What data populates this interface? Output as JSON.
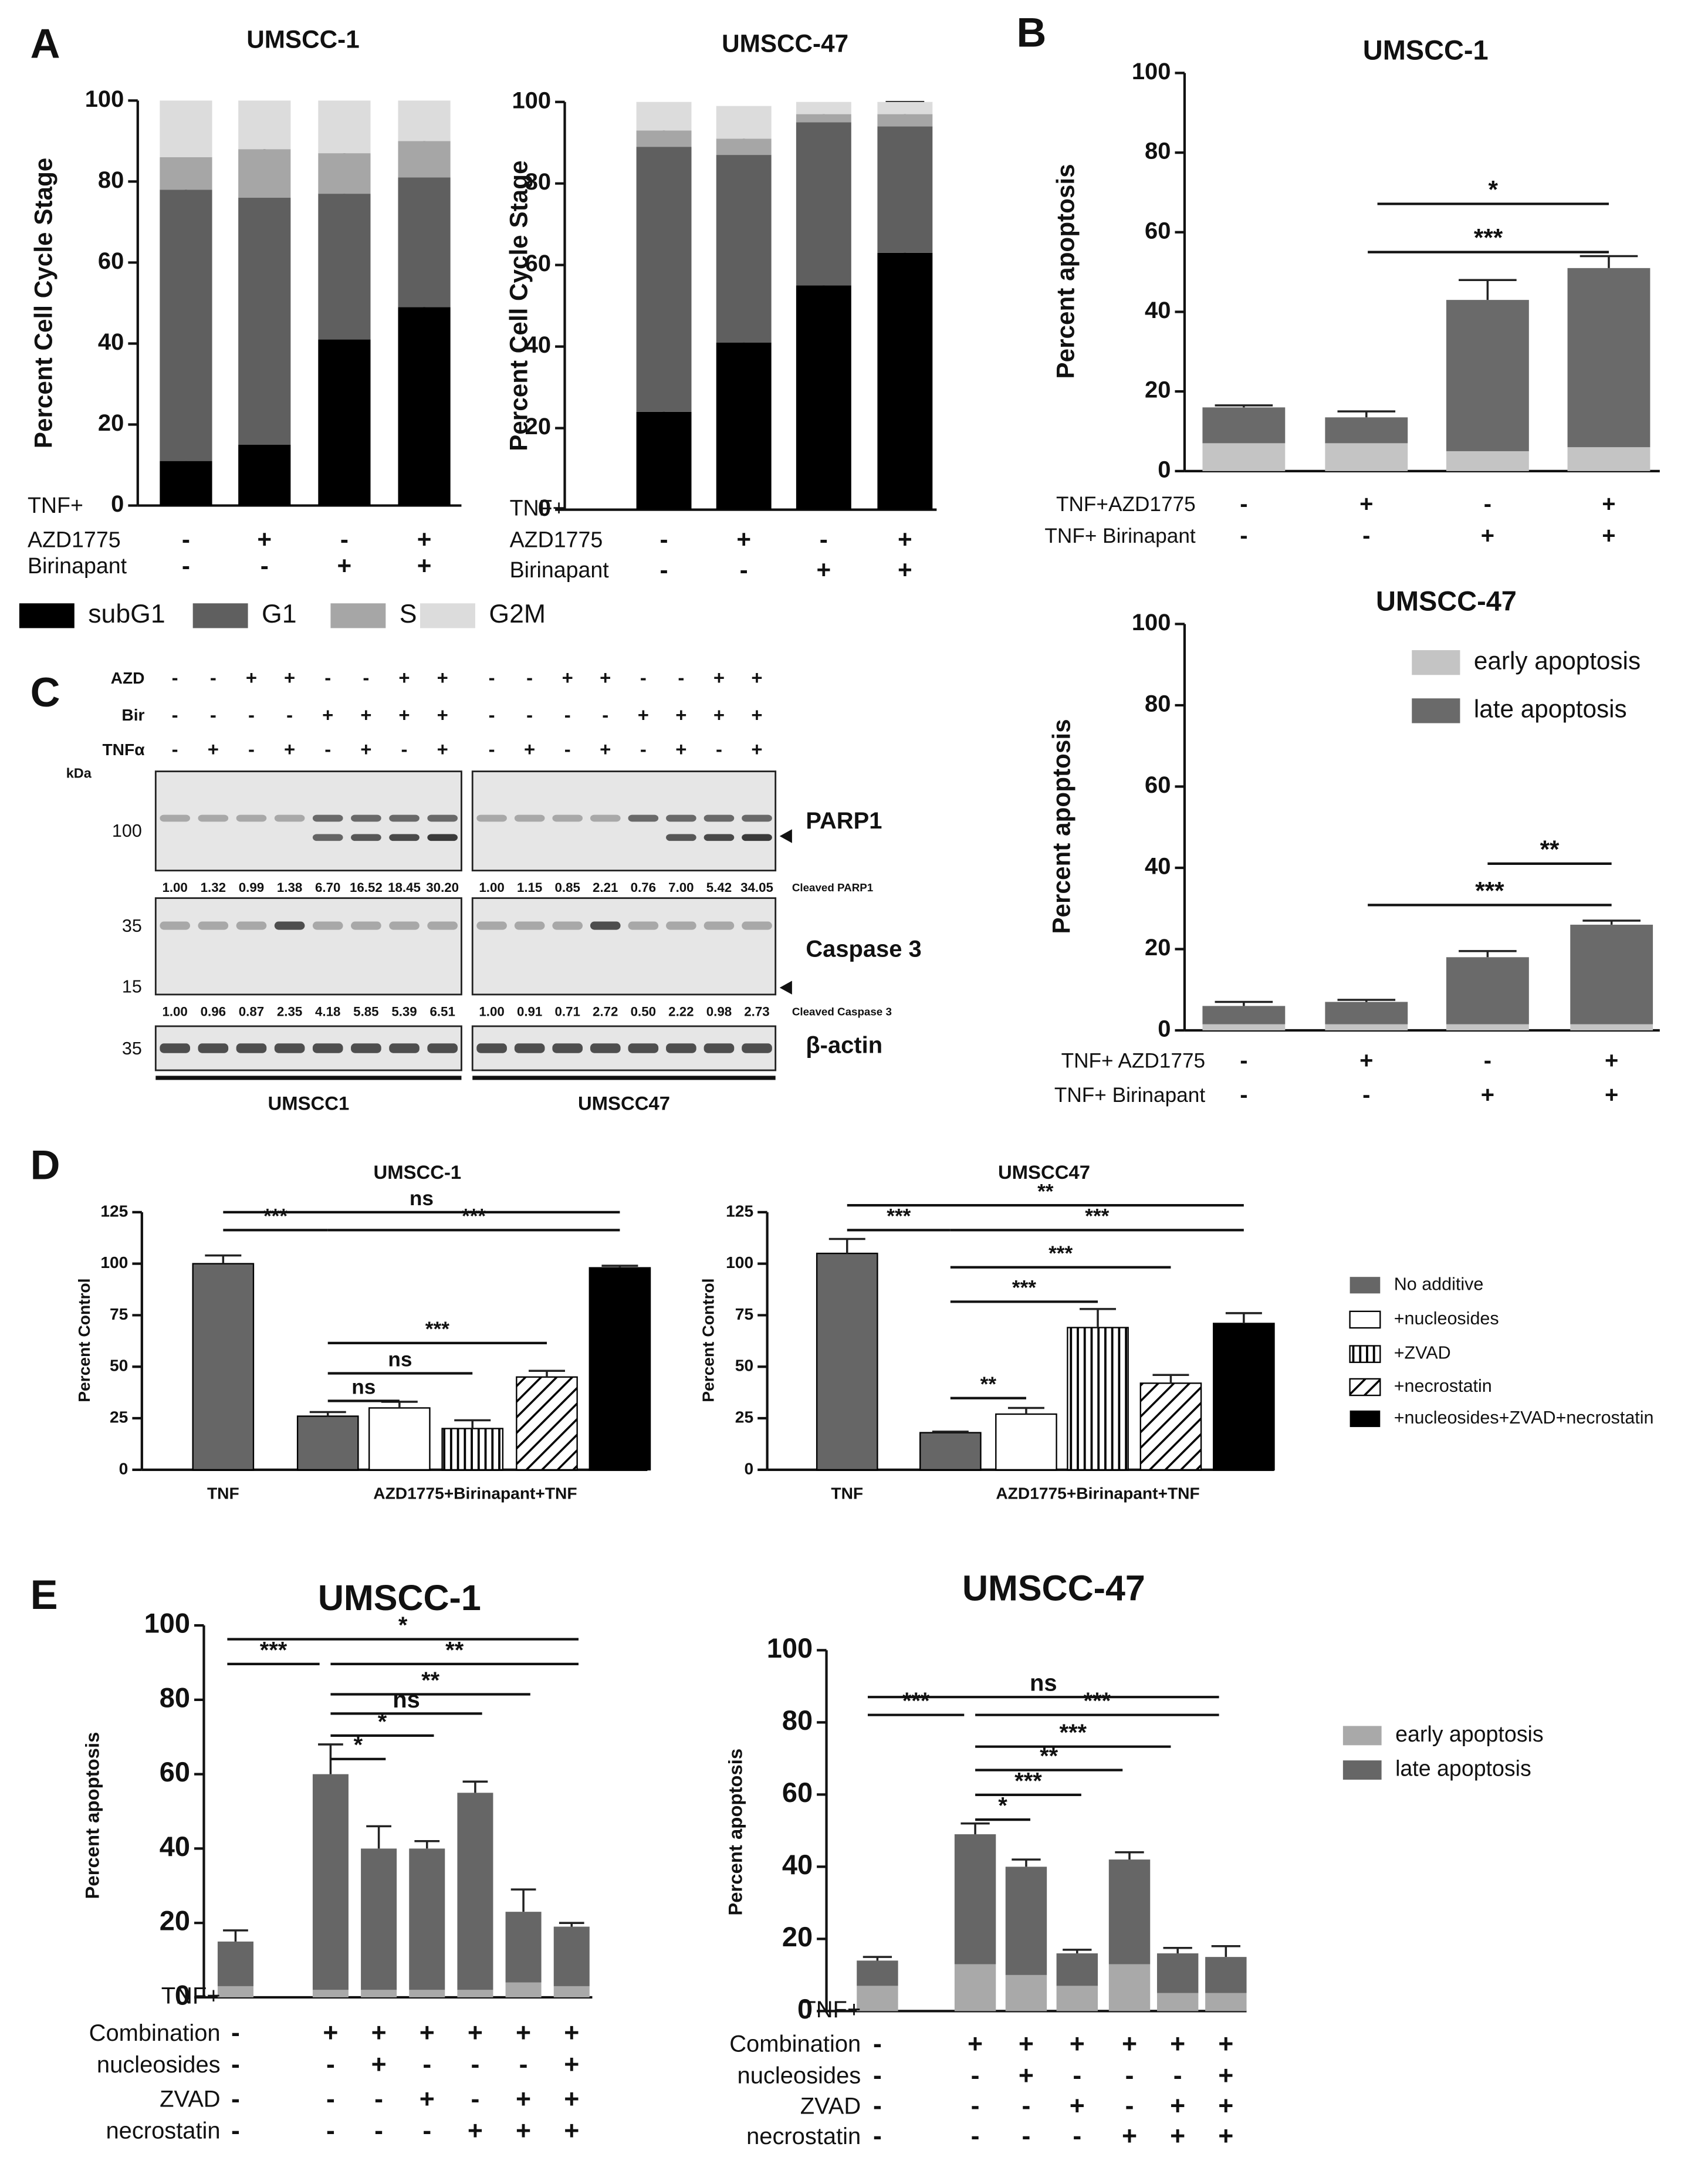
{
  "panels": [
    "A",
    "B",
    "C",
    "D",
    "E"
  ],
  "chart_data": [
    {
      "type": "stacked_bar",
      "title": "UMSCC-1",
      "ylabel": "Percent Cell Cycle Stage",
      "ylim": [
        0,
        100
      ],
      "yticks": [
        0,
        20,
        40,
        60,
        80,
        100
      ],
      "categories": [
        null,
        null,
        null,
        null
      ],
      "series": [
        {
          "name": "subG1",
          "color": "#000000",
          "values": [
            11,
            15,
            41,
            49
          ],
          "errors": [
            1,
            2,
            1.5,
            3
          ]
        },
        {
          "name": "G1",
          "color": "#5f5f5f",
          "values": [
            67,
            61,
            36,
            32
          ],
          "errors": [
            1.5,
            3,
            1,
            2
          ]
        },
        {
          "name": "S",
          "color": "#a6a6a6",
          "values": [
            8,
            12,
            10,
            9
          ],
          "errors": [
            1,
            1,
            0.5,
            1
          ]
        },
        {
          "name": "G2M",
          "color": "#dcdcdc",
          "values": [
            14,
            12,
            13,
            10
          ]
        }
      ],
      "condition_rows": [
        {
          "name": "TNF+",
          "signs": []
        },
        {
          "name": "AZD1775",
          "signs": [
            "-",
            "+",
            "-",
            "+"
          ]
        },
        {
          "name": "Birinapant",
          "signs": [
            "-",
            "-",
            "+",
            "+"
          ]
        }
      ],
      "legend": "bottom"
    },
    {
      "type": "stacked_bar",
      "title": "UMSCC-47",
      "ylabel": "Percent Cell Cycle Stage",
      "ylim": [
        0,
        100
      ],
      "yticks": [
        0,
        20,
        40,
        60,
        80,
        100
      ],
      "categories": [
        null,
        null,
        null,
        null
      ],
      "series": [
        {
          "name": "subG1",
          "color": "#000000",
          "values": [
            24,
            41,
            55,
            63
          ],
          "errors": [
            2,
            9,
            4,
            10
          ]
        },
        {
          "name": "G1",
          "color": "#5f5f5f",
          "values": [
            65,
            46,
            40,
            31
          ]
        },
        {
          "name": "S",
          "color": "#a6a6a6",
          "values": [
            4,
            4,
            2,
            3
          ],
          "errors": [
            1,
            3,
            1,
            3
          ]
        },
        {
          "name": "G2M",
          "color": "#dcdcdc",
          "values": [
            7,
            8,
            3,
            3
          ]
        }
      ],
      "condition_rows": [
        {
          "name": "TNF+",
          "signs": []
        },
        {
          "name": "AZD1775",
          "signs": [
            "-",
            "+",
            "-",
            "+"
          ]
        },
        {
          "name": "Birinapant",
          "signs": [
            "-",
            "-",
            "+",
            "+"
          ]
        }
      ]
    },
    {
      "type": "stacked_bar",
      "title": "UMSCC-1",
      "ylabel": "Percent apoptosis",
      "ylim": [
        0,
        100
      ],
      "yticks": [
        0,
        20,
        40,
        60,
        80,
        100
      ],
      "categories": [
        null,
        null,
        null,
        null
      ],
      "series": [
        {
          "name": "early apoptosis",
          "color": "#c4c4c4",
          "values": [
            7,
            7,
            5,
            6
          ]
        },
        {
          "name": "late apoptosis",
          "color": "#6a6a6a",
          "values": [
            9,
            6.5,
            38,
            45
          ],
          "errors": [
            0.5,
            1.5,
            5,
            3
          ]
        }
      ],
      "condition_rows": [
        {
          "name": "TNF+AZD1775",
          "signs": [
            "-",
            "+",
            "-",
            "+"
          ]
        },
        {
          "name": "TNF+ Birinapant",
          "signs": [
            "-",
            "-",
            "+",
            "+"
          ]
        }
      ],
      "annotations": [
        {
          "text": "*"
        },
        {
          "text": "***"
        }
      ]
    },
    {
      "type": "stacked_bar",
      "title": "UMSCC-47",
      "ylabel": "Percent apoptosis",
      "ylim": [
        0,
        100
      ],
      "yticks": [
        0,
        20,
        40,
        60,
        80,
        100
      ],
      "categories": [
        null,
        null,
        null,
        null
      ],
      "series": [
        {
          "name": "early apoptosis",
          "color": "#c4c4c4",
          "values": [
            1.5,
            1.5,
            1.5,
            1.5
          ]
        },
        {
          "name": "late apoptosis",
          "color": "#6a6a6a",
          "values": [
            4.5,
            5.5,
            16.5,
            24.5
          ],
          "errors": [
            1,
            0.5,
            1.5,
            1
          ]
        }
      ],
      "condition_rows": [
        {
          "name": "TNF+ AZD1775",
          "signs": [
            "-",
            "+",
            "-",
            "+"
          ]
        },
        {
          "name": "TNF+ Birinapant",
          "signs": [
            "-",
            "-",
            "+",
            "+"
          ]
        }
      ],
      "annotations": [
        {
          "text": "**"
        },
        {
          "text": "***"
        }
      ],
      "legend": "upper right"
    },
    {
      "type": "bar",
      "title": "UMSCC-1",
      "ylabel": "Percent Control",
      "ylim": [
        0,
        125
      ],
      "yticks": [
        0,
        25,
        50,
        75,
        100,
        125
      ],
      "categories": [
        "TNF",
        "AZD1775+Birinapant+TNF"
      ],
      "series": [
        {
          "name": "No additive",
          "color": "#666666",
          "values": [
            100,
            26
          ],
          "errors": [
            4,
            2
          ]
        },
        {
          "name": "+nucleosides",
          "color": "#ffffff",
          "values": [
            null,
            30
          ],
          "errors": [
            null,
            3
          ]
        },
        {
          "name": "+ZVAD",
          "color": "#ffffff",
          "hatch": "vertical",
          "values": [
            null,
            20
          ],
          "errors": [
            null,
            4
          ]
        },
        {
          "name": "+necrostatin",
          "color": "#ffffff",
          "hatch": "diagonal",
          "values": [
            null,
            45
          ],
          "errors": [
            null,
            3
          ]
        },
        {
          "name": "+nucleosides+ZVAD+necrostatin",
          "color": "#000000",
          "values": [
            null,
            98
          ],
          "errors": [
            null,
            1
          ]
        }
      ],
      "annotations": [
        {
          "text": "***"
        },
        {
          "text": "ns"
        },
        {
          "text": "***"
        },
        {
          "text": "***"
        },
        {
          "text": "ns"
        },
        {
          "text": "ns"
        }
      ]
    },
    {
      "type": "bar",
      "title": "UMSCC47",
      "ylabel": "Percent Control",
      "ylim": [
        0,
        125
      ],
      "yticks": [
        0,
        25,
        50,
        75,
        100,
        125
      ],
      "categories": [
        "TNF",
        "AZD1775+Birinapant+TNF"
      ],
      "series": [
        {
          "name": "No additive",
          "color": "#666666",
          "values": [
            105,
            18
          ],
          "errors": [
            7,
            0.5
          ]
        },
        {
          "name": "+nucleosides",
          "color": "#ffffff",
          "values": [
            null,
            27
          ],
          "errors": [
            null,
            3
          ]
        },
        {
          "name": "+ZVAD",
          "color": "#ffffff",
          "hatch": "vertical",
          "values": [
            null,
            69
          ],
          "errors": [
            null,
            9
          ]
        },
        {
          "name": "+necrostatin",
          "color": "#ffffff",
          "hatch": "diagonal",
          "values": [
            null,
            42
          ],
          "errors": [
            null,
            4
          ]
        },
        {
          "name": "+nucleosides+ZVAD+necrostatin",
          "color": "#000000",
          "values": [
            null,
            71
          ],
          "errors": [
            null,
            5
          ]
        }
      ],
      "annotations": [
        {
          "text": "***"
        },
        {
          "text": "**"
        },
        {
          "text": "***"
        },
        {
          "text": "***"
        },
        {
          "text": "***"
        },
        {
          "text": "**"
        }
      ],
      "legend": "right"
    },
    {
      "type": "stacked_bar",
      "title": "UMSCC-1",
      "ylabel": "Percent apoptosis",
      "ylim": [
        0,
        100
      ],
      "yticks": [
        0,
        20,
        40,
        60,
        80,
        100
      ],
      "categories": [
        null,
        null,
        null,
        null,
        null,
        null,
        null
      ],
      "series": [
        {
          "name": "early apoptosis",
          "color": "#a9a9a9",
          "values": [
            3,
            2,
            2,
            2,
            2,
            4,
            3
          ]
        },
        {
          "name": "late apoptosis",
          "color": "#666666",
          "values": [
            12,
            58,
            38,
            38,
            53,
            19,
            16
          ],
          "errors": [
            3,
            8,
            6,
            2,
            3,
            6,
            1
          ]
        }
      ],
      "condition_rows": [
        {
          "name": "TNF+",
          "signs": []
        },
        {
          "name": "Combination",
          "signs": [
            "-",
            "+",
            "+",
            "+",
            "+",
            "+",
            "+"
          ]
        },
        {
          "name": "nucleosides",
          "signs": [
            "-",
            "-",
            "+",
            "-",
            "-",
            "-",
            "+"
          ]
        },
        {
          "name": "ZVAD",
          "signs": [
            "-",
            "-",
            "-",
            "+",
            "-",
            "+",
            "+"
          ]
        },
        {
          "name": "necrostatin",
          "signs": [
            "-",
            "-",
            "-",
            "-",
            "+",
            "+",
            "+"
          ]
        }
      ],
      "annotations": [
        {
          "text": "***"
        },
        {
          "text": "*"
        },
        {
          "text": "**"
        },
        {
          "text": "**"
        },
        {
          "text": "ns"
        },
        {
          "text": "*"
        },
        {
          "text": "*"
        }
      ]
    },
    {
      "type": "stacked_bar",
      "title": "UMSCC-47",
      "ylabel": "Percent apoptosis",
      "ylim": [
        0,
        100
      ],
      "yticks": [
        0,
        20,
        40,
        60,
        80,
        100
      ],
      "categories": [
        null,
        null,
        null,
        null,
        null,
        null,
        null
      ],
      "series": [
        {
          "name": "early apoptosis",
          "color": "#a9a9a9",
          "values": [
            7,
            13,
            10,
            7,
            13,
            5,
            5
          ]
        },
        {
          "name": "late apoptosis",
          "color": "#666666",
          "values": [
            7,
            36,
            30,
            9,
            29,
            11,
            10
          ],
          "errors": [
            1,
            3,
            2,
            1,
            2,
            1.5,
            3
          ]
        }
      ],
      "condition_rows": [
        {
          "name": "TNF+",
          "signs": []
        },
        {
          "name": "Combination",
          "signs": [
            "-",
            "+",
            "+",
            "+",
            "+",
            "+",
            "+"
          ]
        },
        {
          "name": "nucleosides",
          "signs": [
            "-",
            "-",
            "+",
            "-",
            "-",
            "-",
            "+"
          ]
        },
        {
          "name": "ZVAD",
          "signs": [
            "-",
            "-",
            "-",
            "+",
            "-",
            "+",
            "+"
          ]
        },
        {
          "name": "necrostatin",
          "signs": [
            "-",
            "-",
            "-",
            "-",
            "+",
            "+",
            "+"
          ]
        }
      ],
      "annotations": [
        {
          "text": "ns"
        },
        {
          "text": "***"
        },
        {
          "text": "***"
        },
        {
          "text": "***"
        },
        {
          "text": "**"
        },
        {
          "text": "***"
        },
        {
          "text": "*"
        }
      ],
      "legend": "right"
    }
  ],
  "blot": {
    "rows": [
      {
        "name": "AZD",
        "signs": [
          "-",
          "-",
          "+",
          "+",
          "-",
          "-",
          "+",
          "+",
          "-",
          "-",
          "+",
          "+",
          "-",
          "-",
          "+",
          "+"
        ]
      },
      {
        "name": "Bir",
        "signs": [
          "-",
          "-",
          "-",
          "-",
          "+",
          "+",
          "+",
          "+",
          "-",
          "-",
          "-",
          "-",
          "+",
          "+",
          "+",
          "+"
        ]
      },
      {
        "name": "TNFα",
        "signs": [
          "-",
          "+",
          "-",
          "+",
          "-",
          "+",
          "-",
          "+",
          "-",
          "+",
          "-",
          "+",
          "-",
          "+",
          "-",
          "+"
        ]
      }
    ],
    "kda": "kDa",
    "markers": [
      100,
      35,
      15,
      35
    ],
    "bands": [
      "PARP1",
      "Caspase 3",
      "β-actin"
    ],
    "quant": [
      {
        "name": "Cleaved PARP1",
        "values": [
          "1.00",
          "1.32",
          "0.99",
          "1.38",
          "6.70",
          "16.52",
          "18.45",
          "30.20",
          "1.00",
          "1.15",
          "0.85",
          "2.21",
          "0.76",
          "7.00",
          "5.42",
          "34.05"
        ]
      },
      {
        "name": "Cleaved Caspase 3",
        "values": [
          "1.00",
          "0.96",
          "0.87",
          "2.35",
          "4.18",
          "5.85",
          "5.39",
          "6.51",
          "1.00",
          "0.91",
          "0.71",
          "2.72",
          "0.50",
          "2.22",
          "0.98",
          "2.73"
        ]
      }
    ],
    "cell_lines": [
      "UMSCC1",
      "UMSCC47"
    ]
  }
}
